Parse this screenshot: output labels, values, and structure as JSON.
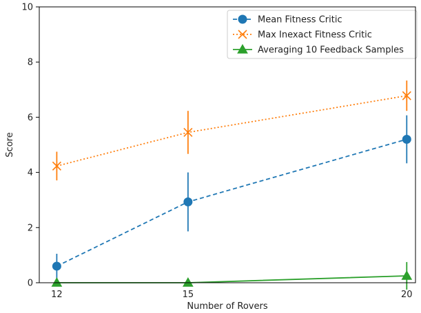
{
  "chart_data": {
    "type": "line",
    "xlabel": "Number of Rovers",
    "ylabel": "Score",
    "x": [
      12,
      15,
      20
    ],
    "xticks": [
      12,
      15,
      20
    ],
    "xlim": [
      11.6,
      20.2
    ],
    "ylim": [
      0,
      10
    ],
    "yticks": [
      0,
      2,
      4,
      6,
      8,
      10
    ],
    "grid": false,
    "legend_position": "top-right",
    "series": [
      {
        "name": "Mean Fitness Critic",
        "values": [
          0.6,
          2.93,
          5.2
        ],
        "error": [
          0.45,
          1.07,
          0.87
        ],
        "color": "#1f77b4",
        "line_style": "dashed",
        "marker": "circle"
      },
      {
        "name": "Max Inexact Fitness Critic",
        "values": [
          4.23,
          5.45,
          6.78
        ],
        "error": [
          0.52,
          0.78,
          0.55
        ],
        "color": "#ff7f0e",
        "line_style": "dotted",
        "marker": "x"
      },
      {
        "name": "Averaging 10 Feedback Samples",
        "values": [
          0.0,
          0.0,
          0.25
        ],
        "error": [
          0.0,
          0.0,
          0.5
        ],
        "color": "#2ca02c",
        "line_style": "solid",
        "marker": "triangle"
      }
    ]
  }
}
